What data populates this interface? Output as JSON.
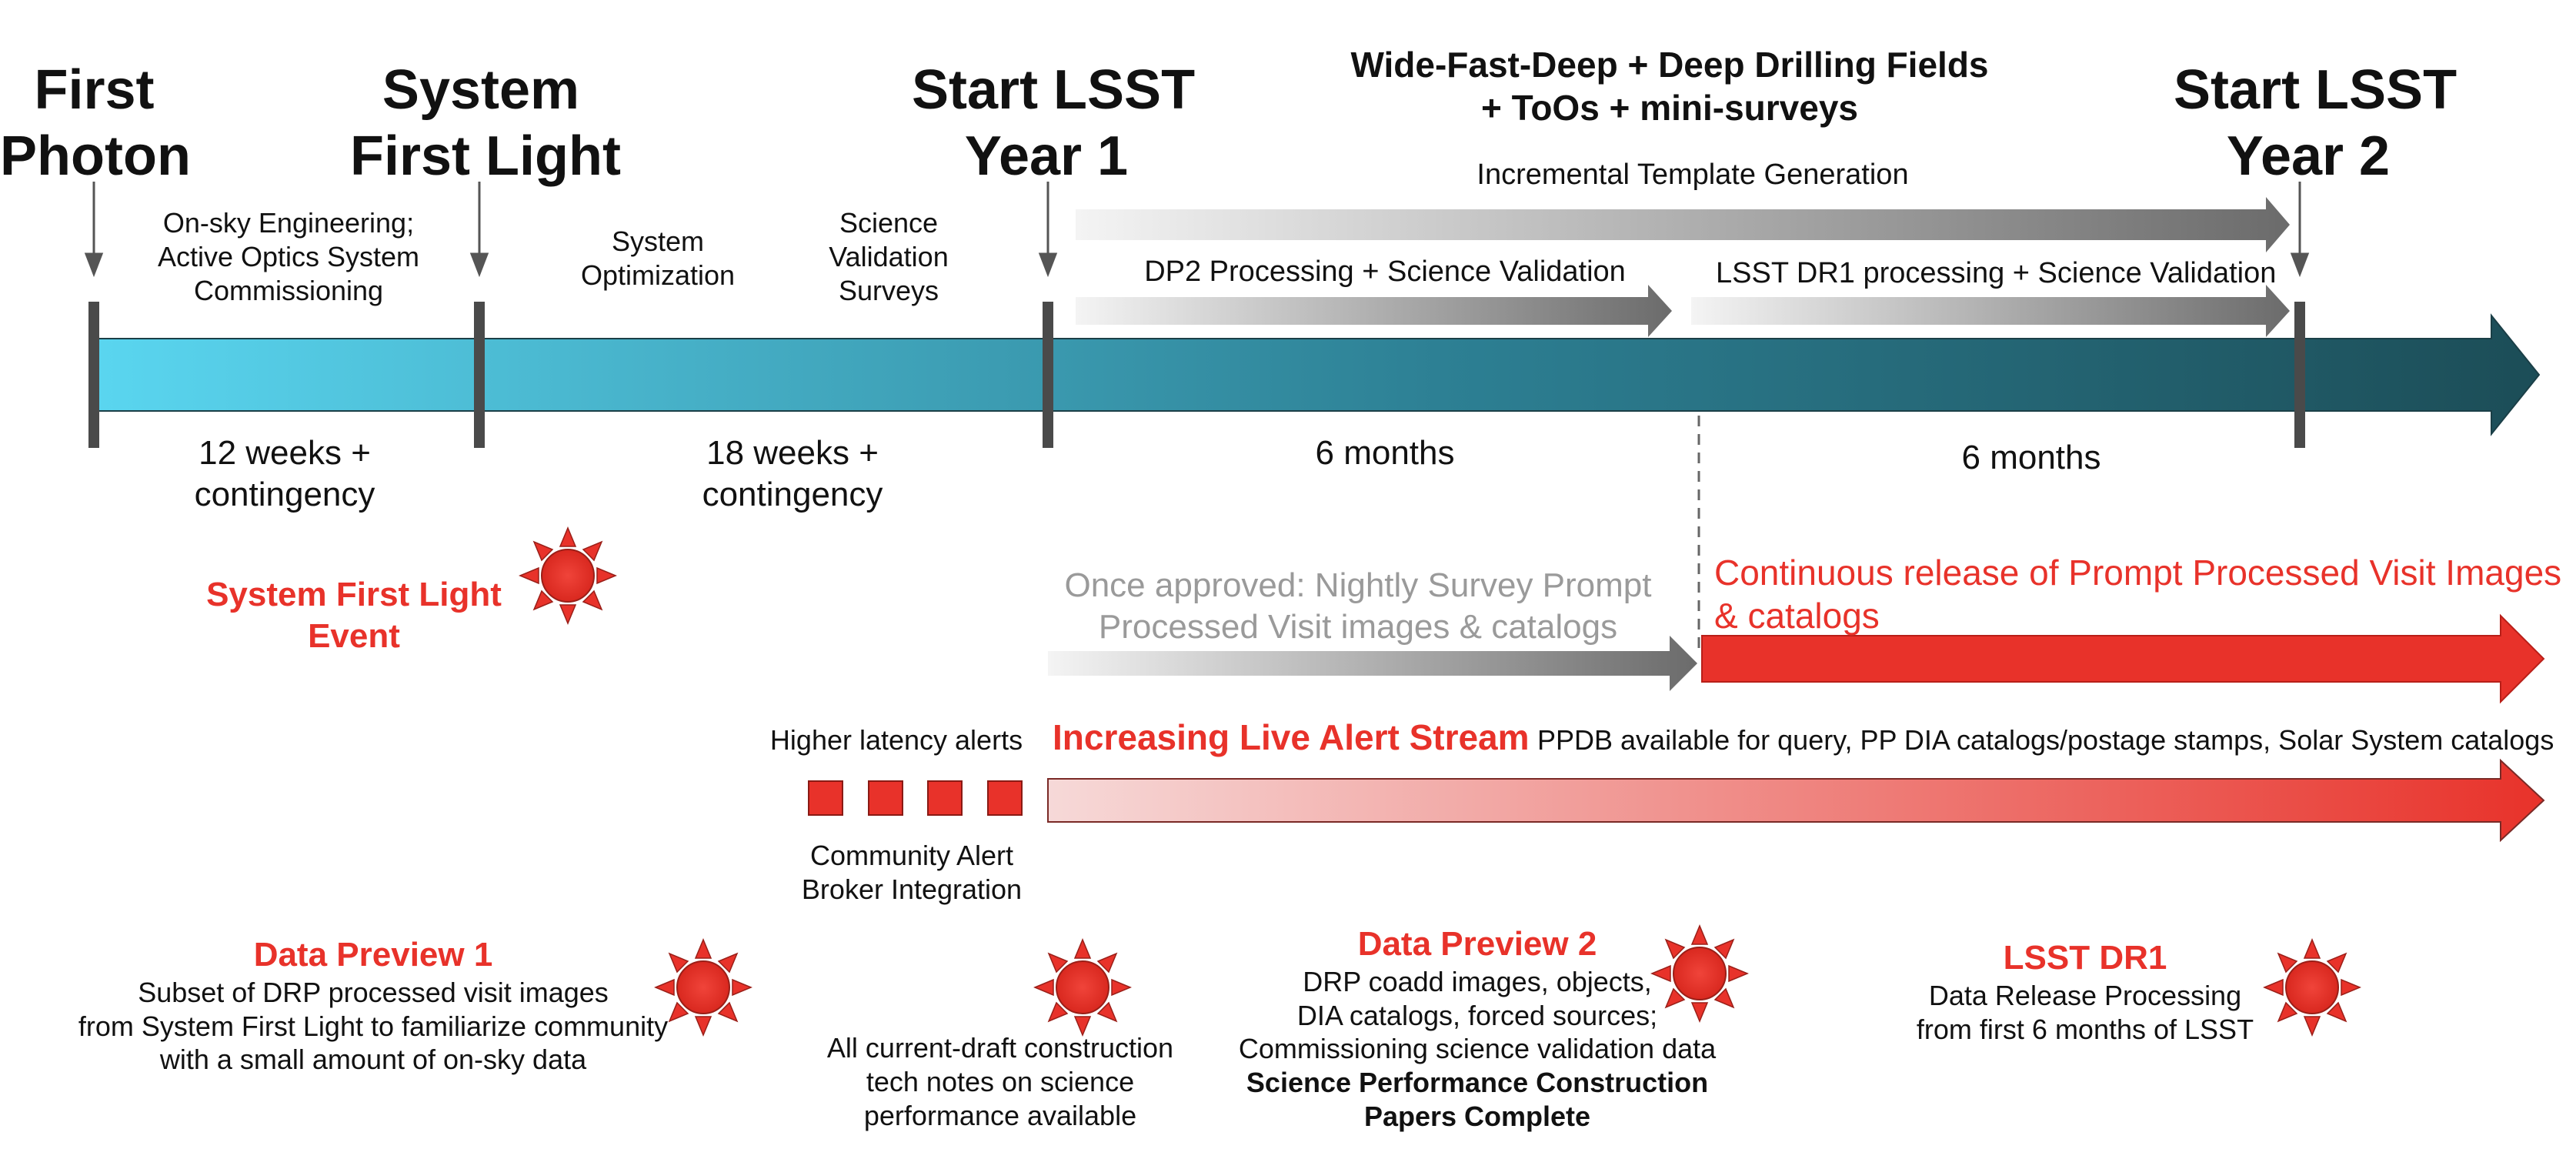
{
  "milestones": {
    "first_photon": [
      "First",
      "Photon"
    ],
    "system_first_light": [
      "System",
      "First Light"
    ],
    "start_year1": [
      "Start LSST",
      "Year 1"
    ],
    "start_year2": [
      "Start LSST",
      "Year 2"
    ]
  },
  "surveys_title": [
    "Wide-Fast-Deep + Deep Drilling Fields",
    "+ ToOs + mini-surveys"
  ],
  "phases": {
    "commissioning": [
      "On-sky Engineering;",
      "Active Optics System",
      "Commissioning"
    ],
    "optimization": [
      "System",
      "Optimization"
    ],
    "science_validation": [
      "Science",
      "Validation",
      "Surveys"
    ]
  },
  "durations": {
    "d1": [
      "12 weeks +",
      "contingency"
    ],
    "d2": [
      "18 weeks +",
      "contingency"
    ],
    "d3": "6 months",
    "d4": "6 months"
  },
  "bands": {
    "template": "Incremental Template Generation",
    "dp2": "DP2 Processing  + Science Validation",
    "dr1": "LSST DR1 processing + Science Validation"
  },
  "first_light_event": [
    "System First Light",
    "Event"
  ],
  "prompt": {
    "once_approved": [
      "Once approved: Nightly Survey Prompt",
      "Processed Visit images & catalogs"
    ],
    "continuous": [
      "Continuous release of Prompt Processed Visit Images",
      "& catalogs"
    ]
  },
  "alerts": {
    "higher_latency": "Higher latency alerts",
    "live_stream_title": "Increasing Live Alert Stream",
    "live_stream_detail": "PPDB available for query, PP DIA catalogs/postage stamps, Solar System catalogs",
    "broker": [
      "Community Alert",
      "Broker Integration"
    ]
  },
  "releases": {
    "dp1": {
      "title": "Data Preview 1",
      "body": [
        "Subset of DRP processed visit images",
        "from System First Light to familiarize community",
        "with a small amount of on-sky data"
      ]
    },
    "tech_notes": [
      "All current-draft construction",
      "tech notes on science",
      "performance available"
    ],
    "dp2": {
      "title": "Data Preview 2",
      "body": [
        "DRP coadd images, objects,",
        "DIA catalogs, forced sources;",
        "Commissioning science validation data"
      ],
      "bold": [
        "Science Performance Construction",
        "Papers Complete"
      ]
    },
    "dr1": {
      "title": "LSST DR1",
      "body": [
        "Data Release Processing",
        "from first 6 months of LSST"
      ]
    }
  },
  "colors": {
    "timeline_start": "#5ad6f0",
    "timeline_end": "#1c4d57",
    "accent_red": "#e8322a",
    "gray_text": "#9a9a9a"
  }
}
